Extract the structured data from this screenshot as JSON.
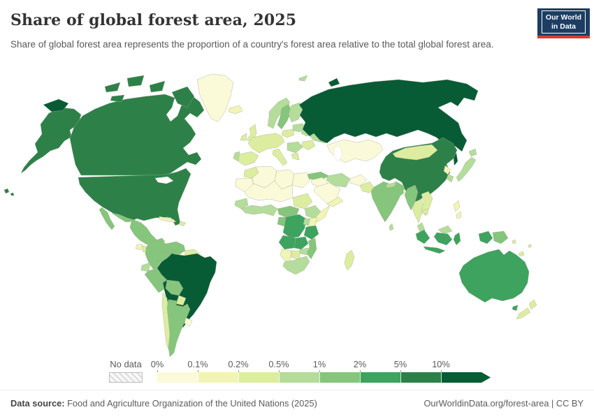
{
  "header": {
    "title": "Share of global forest area, 2025",
    "subtitle": "Share of global forest area represents the proportion of a country's forest area relative to the total global forest area.",
    "logo_line1": "Our World",
    "logo_line2": "in Data",
    "logo_bg": "#1d3d63",
    "logo_accent": "#d73c32"
  },
  "legend": {
    "no_data_label": "No data",
    "tick_labels": [
      "0%",
      "0.1%",
      "0.2%",
      "0.5%",
      "1%",
      "2%",
      "5%",
      "10%"
    ],
    "colors": [
      "#fbfad8",
      "#f2f4b5",
      "#dceda0",
      "#b4dc9a",
      "#85c57c",
      "#3da35f",
      "#2d8148",
      "#075c35"
    ]
  },
  "footer": {
    "source_label": "Data source:",
    "source_text": " Food and Agriculture Organization of the United Nations (2025)",
    "right_text": "OurWorldinData.org/forest-area | CC BY"
  },
  "chart_data": {
    "type": "choropleth",
    "title": "Share of global forest area, 2025",
    "unit": "%",
    "bin_labels": [
      "0–0.1%",
      "0.1–0.2%",
      "0.2–0.5%",
      "0.5–1%",
      "1–2%",
      "2–5%",
      "5–10%",
      "10%+"
    ],
    "legend_position": "bottom",
    "countries": [
      {
        "id": "russia",
        "name": "Russia",
        "bin": 7
      },
      {
        "id": "brazil",
        "name": "Brazil",
        "bin": 7
      },
      {
        "id": "canada",
        "name": "Canada",
        "bin": 6
      },
      {
        "id": "united-states",
        "name": "United States",
        "bin": 6
      },
      {
        "id": "china",
        "name": "China",
        "bin": 6
      },
      {
        "id": "australia",
        "name": "Australia",
        "bin": 5
      },
      {
        "id": "indonesia",
        "name": "Indonesia",
        "bin": 5
      },
      {
        "id": "dr-congo",
        "name": "Democratic Republic of Congo",
        "bin": 5
      },
      {
        "id": "angola",
        "name": "Angola",
        "bin": 5
      },
      {
        "id": "zambia",
        "name": "Zambia",
        "bin": 5
      },
      {
        "id": "tanzania",
        "name": "Tanzania",
        "bin": 5
      },
      {
        "id": "mexico",
        "name": "Mexico",
        "bin": 4
      },
      {
        "id": "colombia",
        "name": "Colombia",
        "bin": 4
      },
      {
        "id": "venezuela",
        "name": "Venezuela",
        "bin": 4
      },
      {
        "id": "peru",
        "name": "Peru",
        "bin": 4
      },
      {
        "id": "bolivia",
        "name": "Bolivia",
        "bin": 4
      },
      {
        "id": "argentina",
        "name": "Argentina",
        "bin": 4
      },
      {
        "id": "india",
        "name": "India",
        "bin": 4
      },
      {
        "id": "myanmar",
        "name": "Myanmar",
        "bin": 4
      },
      {
        "id": "sweden",
        "name": "Sweden",
        "bin": 4
      },
      {
        "id": "turkey",
        "name": "Turkey",
        "bin": 4
      },
      {
        "id": "cameroon-car",
        "name": "Cameroon / Central African Republic",
        "bin": 4
      },
      {
        "id": "gabon-congo",
        "name": "Gabon / Congo",
        "bin": 4
      },
      {
        "id": "mozambique",
        "name": "Mozambique",
        "bin": 4
      },
      {
        "id": "papua-new-guinea",
        "name": "Papua New Guinea",
        "bin": 4
      },
      {
        "id": "norway",
        "name": "Norway",
        "bin": 3
      },
      {
        "id": "finland",
        "name": "Finland",
        "bin": 3
      },
      {
        "id": "baltics",
        "name": "Baltic states",
        "bin": 3
      },
      {
        "id": "belarus",
        "name": "Belarus",
        "bin": 3
      },
      {
        "id": "ukraine",
        "name": "Ukraine",
        "bin": 3
      },
      {
        "id": "portugal",
        "name": "Portugal",
        "bin": 3
      },
      {
        "id": "balkans",
        "name": "Balkans",
        "bin": 3
      },
      {
        "id": "iran",
        "name": "Iran",
        "bin": 3
      },
      {
        "id": "japan",
        "name": "Japan",
        "bin": 3
      },
      {
        "id": "south-korea",
        "name": "South Korea",
        "bin": 3
      },
      {
        "id": "sri-lanka",
        "name": "Sri Lanka",
        "bin": 3
      },
      {
        "id": "nepal",
        "name": "Nepal",
        "bin": 3
      },
      {
        "id": "malaysia",
        "name": "Malaysia",
        "bin": 3
      },
      {
        "id": "senegal-guinea",
        "name": "Senegal / Guinea",
        "bin": 3
      },
      {
        "id": "west-africa-coast",
        "name": "West Africa",
        "bin": 3
      },
      {
        "id": "ethiopia",
        "name": "Ethiopia",
        "bin": 3
      },
      {
        "id": "uganda",
        "name": "Uganda",
        "bin": 3
      },
      {
        "id": "zimbabwe",
        "name": "Zimbabwe",
        "bin": 3
      },
      {
        "id": "south-africa",
        "name": "South Africa",
        "bin": 3
      },
      {
        "id": "costa-rica-panama",
        "name": "Costa Rica / Panama",
        "bin": 3
      },
      {
        "id": "ecuador",
        "name": "Ecuador",
        "bin": 3
      },
      {
        "id": "laos-vietnam",
        "name": "Laos / Vietnam",
        "bin": 2
      },
      {
        "id": "svalbard",
        "name": "Svalbard",
        "bin": 3
      },
      {
        "id": "uk",
        "name": "United Kingdom",
        "bin": 2
      },
      {
        "id": "ireland",
        "name": "Ireland",
        "bin": 2
      },
      {
        "id": "west-europe",
        "name": "France / Germany",
        "bin": 2
      },
      {
        "id": "spain",
        "name": "Spain",
        "bin": 2
      },
      {
        "id": "italy",
        "name": "Italy",
        "bin": 2
      },
      {
        "id": "poland",
        "name": "Poland",
        "bin": 2
      },
      {
        "id": "romania",
        "name": "Romania",
        "bin": 2
      },
      {
        "id": "greece",
        "name": "Greece",
        "bin": 2
      },
      {
        "id": "morocco",
        "name": "Morocco",
        "bin": 2
      },
      {
        "id": "sudan",
        "name": "Sudan",
        "bin": 2
      },
      {
        "id": "botswana",
        "name": "Botswana",
        "bin": 2
      },
      {
        "id": "chile",
        "name": "Chile",
        "bin": 2
      },
      {
        "id": "paraguay",
        "name": "Paraguay",
        "bin": 2
      },
      {
        "id": "guyanas",
        "name": "Guyana / Suriname",
        "bin": 2
      },
      {
        "id": "mongolia",
        "name": "Mongolia",
        "bin": 2
      },
      {
        "id": "thailand",
        "name": "Thailand",
        "bin": 2
      },
      {
        "id": "cambodia",
        "name": "Cambodia",
        "bin": 2
      },
      {
        "id": "madagascar",
        "name": "Madagascar",
        "bin": 2
      },
      {
        "id": "new-zealand",
        "name": "New Zealand",
        "bin": 2
      },
      {
        "id": "hispaniola",
        "name": "Hispaniola",
        "bin": 2
      },
      {
        "id": "honduras-nicaragua",
        "name": "Honduras / Nicaragua",
        "bin": 2
      },
      {
        "id": "pakistan",
        "name": "Pakistan",
        "bin": 2
      },
      {
        "id": "solomon-islands",
        "name": "Solomon Islands",
        "bin": 2
      },
      {
        "id": "new-caledonia",
        "name": "New Caledonia",
        "bin": 2
      },
      {
        "id": "fiji",
        "name": "Fiji",
        "bin": 2
      },
      {
        "id": "iceland",
        "name": "Iceland",
        "bin": 1
      },
      {
        "id": "cuba",
        "name": "Cuba",
        "bin": 1
      },
      {
        "id": "guatemala",
        "name": "Guatemala",
        "bin": 1
      },
      {
        "id": "somalia",
        "name": "Somalia",
        "bin": 1
      },
      {
        "id": "namibia",
        "name": "Namibia",
        "bin": 1
      },
      {
        "id": "north-korea",
        "name": "North Korea",
        "bin": 1
      },
      {
        "id": "yemen-oman",
        "name": "Yemen / Oman",
        "bin": 1
      },
      {
        "id": "kenya",
        "name": "Kenya",
        "bin": 1
      },
      {
        "id": "bangladesh",
        "name": "Bangladesh",
        "bin": 1
      },
      {
        "id": "philippines",
        "name": "Philippines",
        "bin": 1
      },
      {
        "id": "greenland",
        "name": "Greenland",
        "bin": 0
      },
      {
        "id": "kazakhstan",
        "name": "Kazakhstan / Central Asia",
        "bin": 0
      },
      {
        "id": "algeria",
        "name": "Algeria",
        "bin": 0
      },
      {
        "id": "libya",
        "name": "Libya",
        "bin": 0
      },
      {
        "id": "egypt",
        "name": "Egypt",
        "bin": 0
      },
      {
        "id": "western-sahara",
        "name": "Western Sahara / Mauritania",
        "bin": 0
      },
      {
        "id": "sahel",
        "name": "Mali / Niger / Chad",
        "bin": 0
      },
      {
        "id": "saudi-arabia",
        "name": "Saudi Arabia",
        "bin": 0
      },
      {
        "id": "iraq-syria",
        "name": "Iraq / Syria",
        "bin": 0
      },
      {
        "id": "afghanistan",
        "name": "Afghanistan",
        "bin": 0
      },
      {
        "id": "uruguay",
        "name": "Uruguay",
        "bin": 0
      }
    ]
  }
}
